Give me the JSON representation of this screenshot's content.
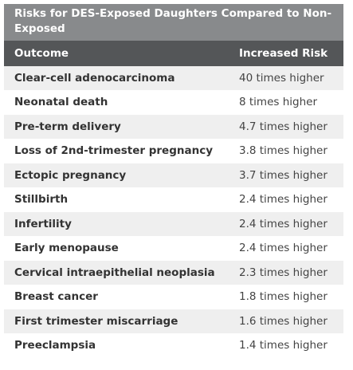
{
  "title": "Risks for DES-Exposed Daughters Compared to Non-Exposed",
  "columns": {
    "outcome": "Outcome",
    "risk": "Increased Risk"
  },
  "rows": [
    {
      "outcome": "Clear-cell adenocarcinoma",
      "risk": "40 times higher"
    },
    {
      "outcome": "Neonatal death",
      "risk": "8 times higher"
    },
    {
      "outcome": "Pre-term delivery",
      "risk": "4.7 times higher"
    },
    {
      "outcome": "Loss of 2nd-trimester pregnancy",
      "risk": "3.8 times higher"
    },
    {
      "outcome": "Ectopic pregnancy",
      "risk": "3.7 times higher"
    },
    {
      "outcome": "Stillbirth",
      "risk": "2.4 times higher"
    },
    {
      "outcome": "Infertility",
      "risk": "2.4 times higher"
    },
    {
      "outcome": "Early menopause",
      "risk": "2.4 times higher"
    },
    {
      "outcome": "Cervical intraepithelial neoplasia",
      "risk": "2.3 times higher"
    },
    {
      "outcome": "Breast cancer",
      "risk": "1.8 times higher"
    },
    {
      "outcome": "First trimester miscarriage",
      "risk": "1.6 times higher"
    },
    {
      "outcome": "Preeclampsia",
      "risk": "1.4 times higher"
    }
  ],
  "colors": {
    "title_bg": "#888a8c",
    "header_bg": "#545658",
    "alt_row_bg": "#efefef",
    "text": "#333333"
  }
}
